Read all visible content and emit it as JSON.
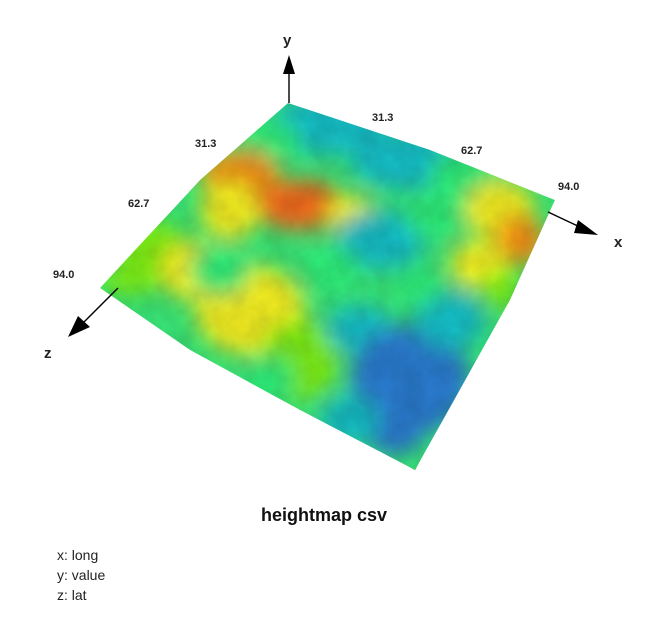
{
  "chart_data": {
    "type": "surface",
    "title": "heightmap csv",
    "axes": {
      "x": {
        "letter": "x",
        "variable": "long",
        "ticks": [
          "31.3",
          "62.7",
          "94.0"
        ]
      },
      "y": {
        "letter": "y",
        "variable": "value"
      },
      "z": {
        "letter": "z",
        "variable": "lat",
        "ticks": [
          "31.3",
          "62.7",
          "94.0"
        ]
      }
    },
    "grid": true,
    "colormap": [
      "#2c7bd0",
      "#16c0c8",
      "#2ef07a",
      "#7ef018",
      "#f5f020",
      "#f89418",
      "#f06a1c"
    ],
    "surface_description": "terrain-like heightmap: high ridge (orange/red) along the left-back, low basin (blue) near the front-right"
  },
  "legend": {
    "x": "x: long",
    "y": "y: value",
    "z": "z: lat"
  }
}
